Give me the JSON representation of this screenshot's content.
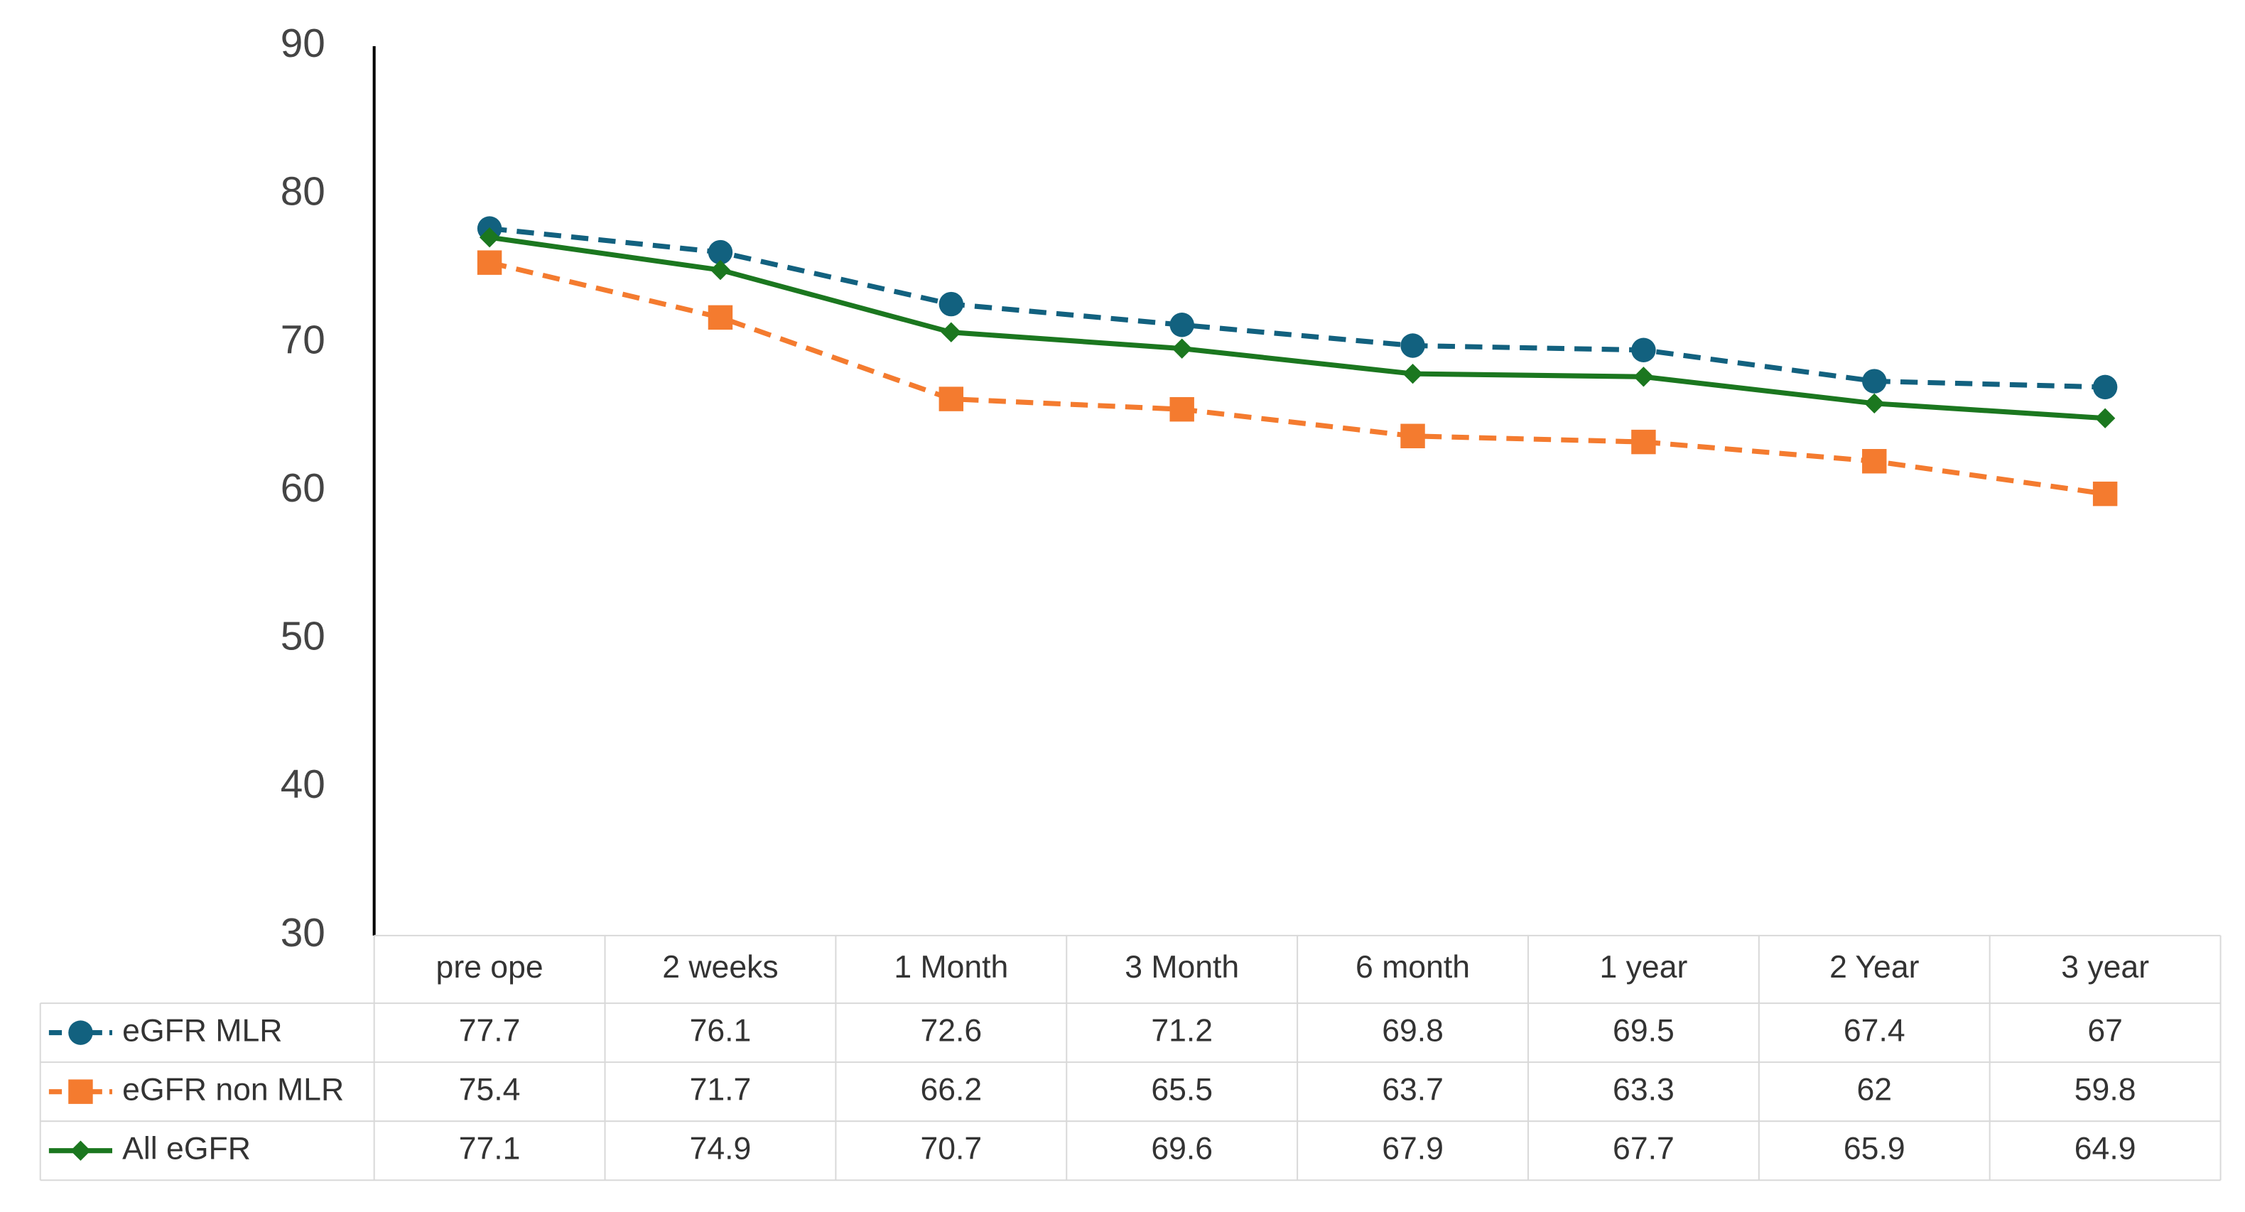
{
  "chart_data": {
    "type": "line",
    "categories": [
      "pre ope",
      "2 weeks",
      "1 Month",
      "3 Month",
      "6 month",
      "1 year",
      "2 Year",
      "3 year"
    ],
    "series": [
      {
        "name": "eGFR MLR",
        "color": "#12617f",
        "dashed": true,
        "marker": "circle",
        "values": [
          77.7,
          76.1,
          72.6,
          71.2,
          69.8,
          69.5,
          67.4,
          67
        ]
      },
      {
        "name": "eGFR non MLR",
        "color": "#f47b2f",
        "dashed": true,
        "marker": "square",
        "values": [
          75.4,
          71.7,
          66.2,
          65.5,
          63.7,
          63.3,
          62,
          59.8
        ]
      },
      {
        "name": "All eGFR",
        "color": "#1b771f",
        "dashed": false,
        "marker": "diamond",
        "values": [
          77.1,
          74.9,
          70.7,
          69.6,
          67.9,
          67.7,
          65.9,
          64.9
        ]
      }
    ],
    "ylim": [
      30,
      90
    ],
    "yticks": [
      30,
      40,
      50,
      60,
      70,
      80,
      90
    ],
    "grid": false,
    "data_table": true
  }
}
